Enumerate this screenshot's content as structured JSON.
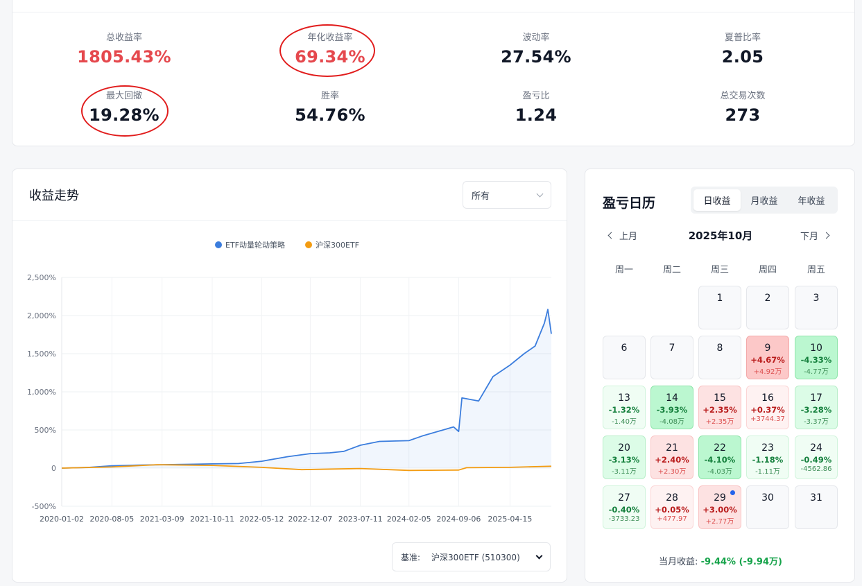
{
  "stats": [
    {
      "label": "总收益率",
      "value": "1805.43%",
      "highlight": true
    },
    {
      "label": "年化收益率",
      "value": "69.34%",
      "highlight": true
    },
    {
      "label": "波动率",
      "value": "27.54%",
      "highlight": false
    },
    {
      "label": "夏普比率",
      "value": "2.05",
      "highlight": false
    },
    {
      "label": "最大回撤",
      "value": "19.28%",
      "highlight": false
    },
    {
      "label": "胜率",
      "value": "54.76%",
      "highlight": false
    },
    {
      "label": "盈亏比",
      "value": "1.24",
      "highlight": false
    },
    {
      "label": "总交易次数",
      "value": "273",
      "highlight": false
    }
  ],
  "trend": {
    "title": "收益走势",
    "range_select": "所有",
    "benchmark_label": "基准:",
    "benchmark_value": "沪深300ETF (510300)"
  },
  "chart_data": {
    "type": "line",
    "title": "",
    "xlabel": "",
    "ylabel": "",
    "x_ticks": [
      "2020-01-02",
      "2020-08-05",
      "2021-03-09",
      "2021-10-11",
      "2022-05-12",
      "2022-12-07",
      "2023-07-11",
      "2024-02-05",
      "2024-09-06",
      "2025-04-15"
    ],
    "y_ticks": [
      "2,500%",
      "2,000%",
      "1,500%",
      "1,000%",
      "500%",
      "0",
      "-500%"
    ],
    "ylim": [
      -500,
      2500
    ],
    "grid": true,
    "legend_position": "top-center",
    "series": [
      {
        "name": "ETF动量轮动策略",
        "color": "#3b7ddd",
        "area": true,
        "x": [
          "2020-01-02",
          "2020-05-01",
          "2020-08-05",
          "2020-12-01",
          "2021-03-09",
          "2021-07-01",
          "2021-10-11",
          "2022-02-01",
          "2022-05-12",
          "2022-09-01",
          "2022-12-07",
          "2023-03-01",
          "2023-05-01",
          "2023-07-11",
          "2023-10-01",
          "2024-02-05",
          "2024-04-01",
          "2024-07-01",
          "2024-08-15",
          "2024-09-06",
          "2024-09-20",
          "2024-12-01",
          "2025-02-01",
          "2025-04-15",
          "2025-06-15",
          "2025-08-01",
          "2025-09-10",
          "2025-09-25",
          "2025-10-10"
        ],
        "values": [
          0,
          10,
          30,
          40,
          45,
          50,
          55,
          60,
          90,
          150,
          190,
          200,
          220,
          300,
          350,
          360,
          420,
          500,
          540,
          480,
          920,
          880,
          1200,
          1350,
          1500,
          1600,
          1900,
          2080,
          1760
        ]
      },
      {
        "name": "沪深300ETF",
        "color": "#f39c12",
        "area": false,
        "x": [
          "2020-01-02",
          "2020-08-05",
          "2021-02-15",
          "2021-10-11",
          "2022-05-12",
          "2022-10-31",
          "2023-07-11",
          "2024-02-05",
          "2024-09-06",
          "2024-10-10",
          "2025-04-15",
          "2025-10-10"
        ],
        "values": [
          0,
          15,
          45,
          35,
          10,
          -20,
          -5,
          -30,
          -25,
          5,
          10,
          25
        ]
      }
    ]
  },
  "calendar": {
    "title": "盈亏日历",
    "tabs": [
      "日收益",
      "月收益",
      "年收益"
    ],
    "active_tab": 0,
    "prev_label": "上月",
    "next_label": "下月",
    "month_title": "2025年10月",
    "weekdays": [
      "周一",
      "周二",
      "周三",
      "周四",
      "周五"
    ],
    "days": [
      {
        "day": "1",
        "col": 2,
        "row": 0,
        "pct": "",
        "amt": "",
        "tone": ""
      },
      {
        "day": "2",
        "col": 3,
        "row": 0,
        "pct": "",
        "amt": "",
        "tone": ""
      },
      {
        "day": "3",
        "col": 4,
        "row": 0,
        "pct": "",
        "amt": "",
        "tone": ""
      },
      {
        "day": "6",
        "col": 0,
        "row": 1,
        "pct": "",
        "amt": "",
        "tone": ""
      },
      {
        "day": "7",
        "col": 1,
        "row": 1,
        "pct": "",
        "amt": "",
        "tone": ""
      },
      {
        "day": "8",
        "col": 2,
        "row": 1,
        "pct": "",
        "amt": "",
        "tone": ""
      },
      {
        "day": "9",
        "col": 3,
        "row": 1,
        "pct": "+4.67%",
        "amt": "+4.92万",
        "tone": "up3"
      },
      {
        "day": "10",
        "col": 4,
        "row": 1,
        "pct": "-4.33%",
        "amt": "-4.77万",
        "tone": "dn3"
      },
      {
        "day": "13",
        "col": 0,
        "row": 2,
        "pct": "-1.32%",
        "amt": "-1.40万",
        "tone": "dn1"
      },
      {
        "day": "14",
        "col": 1,
        "row": 2,
        "pct": "-3.93%",
        "amt": "-4.08万",
        "tone": "dn3"
      },
      {
        "day": "15",
        "col": 2,
        "row": 2,
        "pct": "+2.35%",
        "amt": "+2.35万",
        "tone": "up2"
      },
      {
        "day": "16",
        "col": 3,
        "row": 2,
        "pct": "+0.37%",
        "amt": "+3744.37",
        "tone": "up1"
      },
      {
        "day": "17",
        "col": 4,
        "row": 2,
        "pct": "-3.28%",
        "amt": "-3.37万",
        "tone": "dn2"
      },
      {
        "day": "20",
        "col": 0,
        "row": 3,
        "pct": "-3.13%",
        "amt": "-3.11万",
        "tone": "dn2"
      },
      {
        "day": "21",
        "col": 1,
        "row": 3,
        "pct": "+2.40%",
        "amt": "+2.30万",
        "tone": "up2"
      },
      {
        "day": "22",
        "col": 2,
        "row": 3,
        "pct": "-4.10%",
        "amt": "-4.03万",
        "tone": "dn3"
      },
      {
        "day": "23",
        "col": 3,
        "row": 3,
        "pct": "-1.18%",
        "amt": "-1.11万",
        "tone": "dn1"
      },
      {
        "day": "24",
        "col": 4,
        "row": 3,
        "pct": "-0.49%",
        "amt": "-4562.86",
        "tone": "dn1"
      },
      {
        "day": "27",
        "col": 0,
        "row": 4,
        "pct": "-0.40%",
        "amt": "-3733.23",
        "tone": "dn1"
      },
      {
        "day": "28",
        "col": 1,
        "row": 4,
        "pct": "+0.05%",
        "amt": "+477.97",
        "tone": "up1"
      },
      {
        "day": "29",
        "col": 2,
        "row": 4,
        "pct": "+3.00%",
        "amt": "+2.77万",
        "tone": "up2",
        "today": true
      },
      {
        "day": "30",
        "col": 3,
        "row": 4,
        "pct": "",
        "amt": "",
        "tone": ""
      },
      {
        "day": "31",
        "col": 4,
        "row": 4,
        "pct": "",
        "amt": "",
        "tone": ""
      }
    ],
    "summary_label": "当月收益:",
    "summary_value": "-9.44% (-9.94万)"
  }
}
